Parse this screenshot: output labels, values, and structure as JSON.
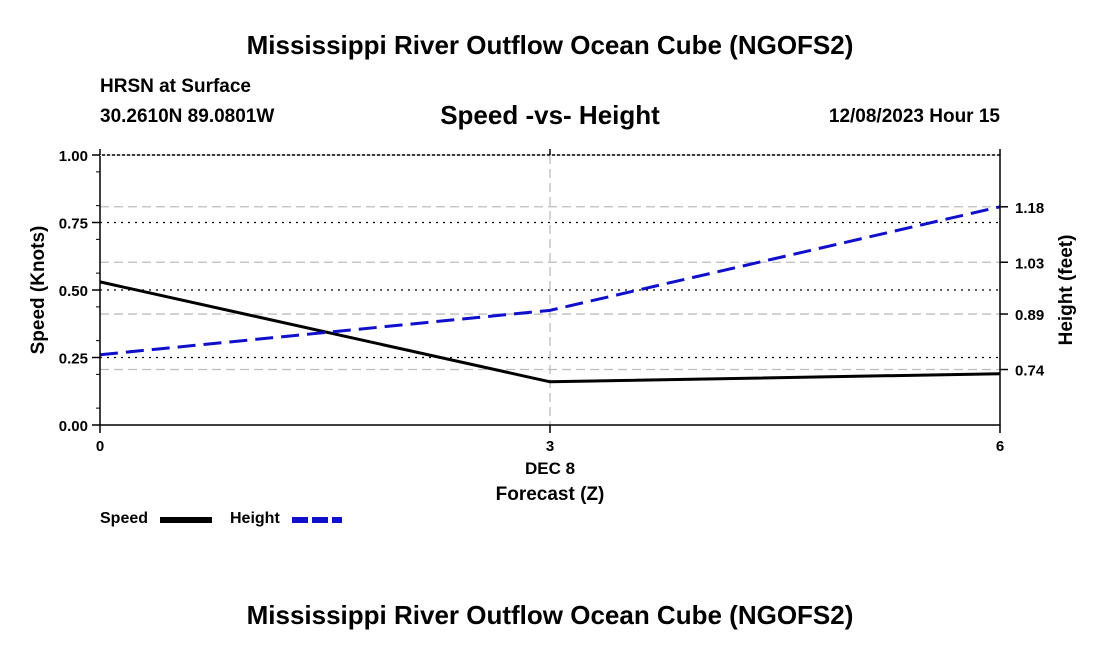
{
  "header": {
    "title": "Mississippi River Outflow Ocean Cube (NGOFS2)",
    "station": "HRSN at Surface",
    "coordinates": "30.2610N  89.0801W",
    "datetime": "12/08/2023 Hour 15",
    "footer_title": "Mississippi River Outflow Ocean Cube (NGOFS2)"
  },
  "chart_data": {
    "type": "line",
    "title": "Speed -vs- Height",
    "xlabel": "Forecast (Z)",
    "x_date_label": "DEC 8",
    "x": [
      0,
      3,
      6
    ],
    "x_ticks": [
      "0",
      "3",
      "6"
    ],
    "xlim": [
      0,
      6
    ],
    "left_axis": {
      "label": "Speed (Knots)",
      "ylim": [
        0,
        1
      ],
      "ticks": [
        "0.00",
        "0.25",
        "0.50",
        "0.75",
        "1.00"
      ]
    },
    "right_axis": {
      "label": "Height (feet)",
      "ylim": [
        0.59,
        1.32
      ],
      "ticks": [
        "0.74",
        "0.89",
        "1.03",
        "1.18"
      ]
    },
    "series": [
      {
        "name": "Speed",
        "axis": "left",
        "values": [
          0.53,
          0.16,
          0.19
        ],
        "color": "#000000",
        "style": "solid"
      },
      {
        "name": "Height",
        "axis": "right",
        "values": [
          0.78,
          0.9,
          1.18
        ],
        "color": "#1010cc",
        "style": "dashed"
      }
    ],
    "grid": true,
    "legend": "bottom-left"
  }
}
